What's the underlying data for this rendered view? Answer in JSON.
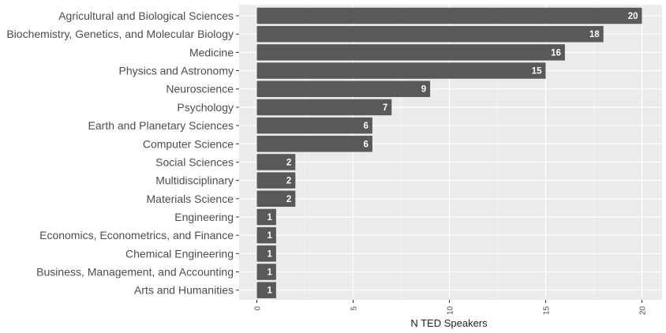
{
  "chart_data": {
    "type": "bar",
    "orientation": "horizontal",
    "title": "",
    "xlabel": "N TED Speakers",
    "ylabel": "",
    "xlim": [
      0,
      21
    ],
    "x_ticks": [
      "0",
      "5",
      "10",
      "15",
      "20"
    ],
    "grid": true,
    "legend": "none",
    "categories": [
      "Agricultural and Biological Sciences",
      "Biochemistry, Genetics, and Molecular Biology",
      "Medicine",
      "Physics and Astronomy",
      "Neuroscience",
      "Psychology",
      "Earth and Planetary Sciences",
      "Computer Science",
      "Social Sciences",
      "Multidisciplinary",
      "Materials Science",
      "Engineering",
      "Economics, Econometrics, and Finance",
      "Chemical Engineering",
      "Business, Management, and Accounting",
      "Arts and Humanities"
    ],
    "values": [
      20,
      18,
      16,
      15,
      9,
      7,
      6,
      6,
      2,
      2,
      2,
      1,
      1,
      1,
      1,
      1
    ],
    "data_labels": [
      "20",
      "18",
      "16",
      "15",
      "9",
      "7",
      "6",
      "6",
      "2",
      "2",
      "2",
      "1",
      "1",
      "1",
      "1",
      "1"
    ]
  },
  "colors": {
    "panel_background": "#ebebeb",
    "bar_fill": "#595959",
    "bar_label": "#ffffff",
    "grid_major": "#ffffff",
    "grid_minor": "#f5f5f5",
    "tick_text": "#4d4d4d",
    "axis_title": "#222222"
  }
}
